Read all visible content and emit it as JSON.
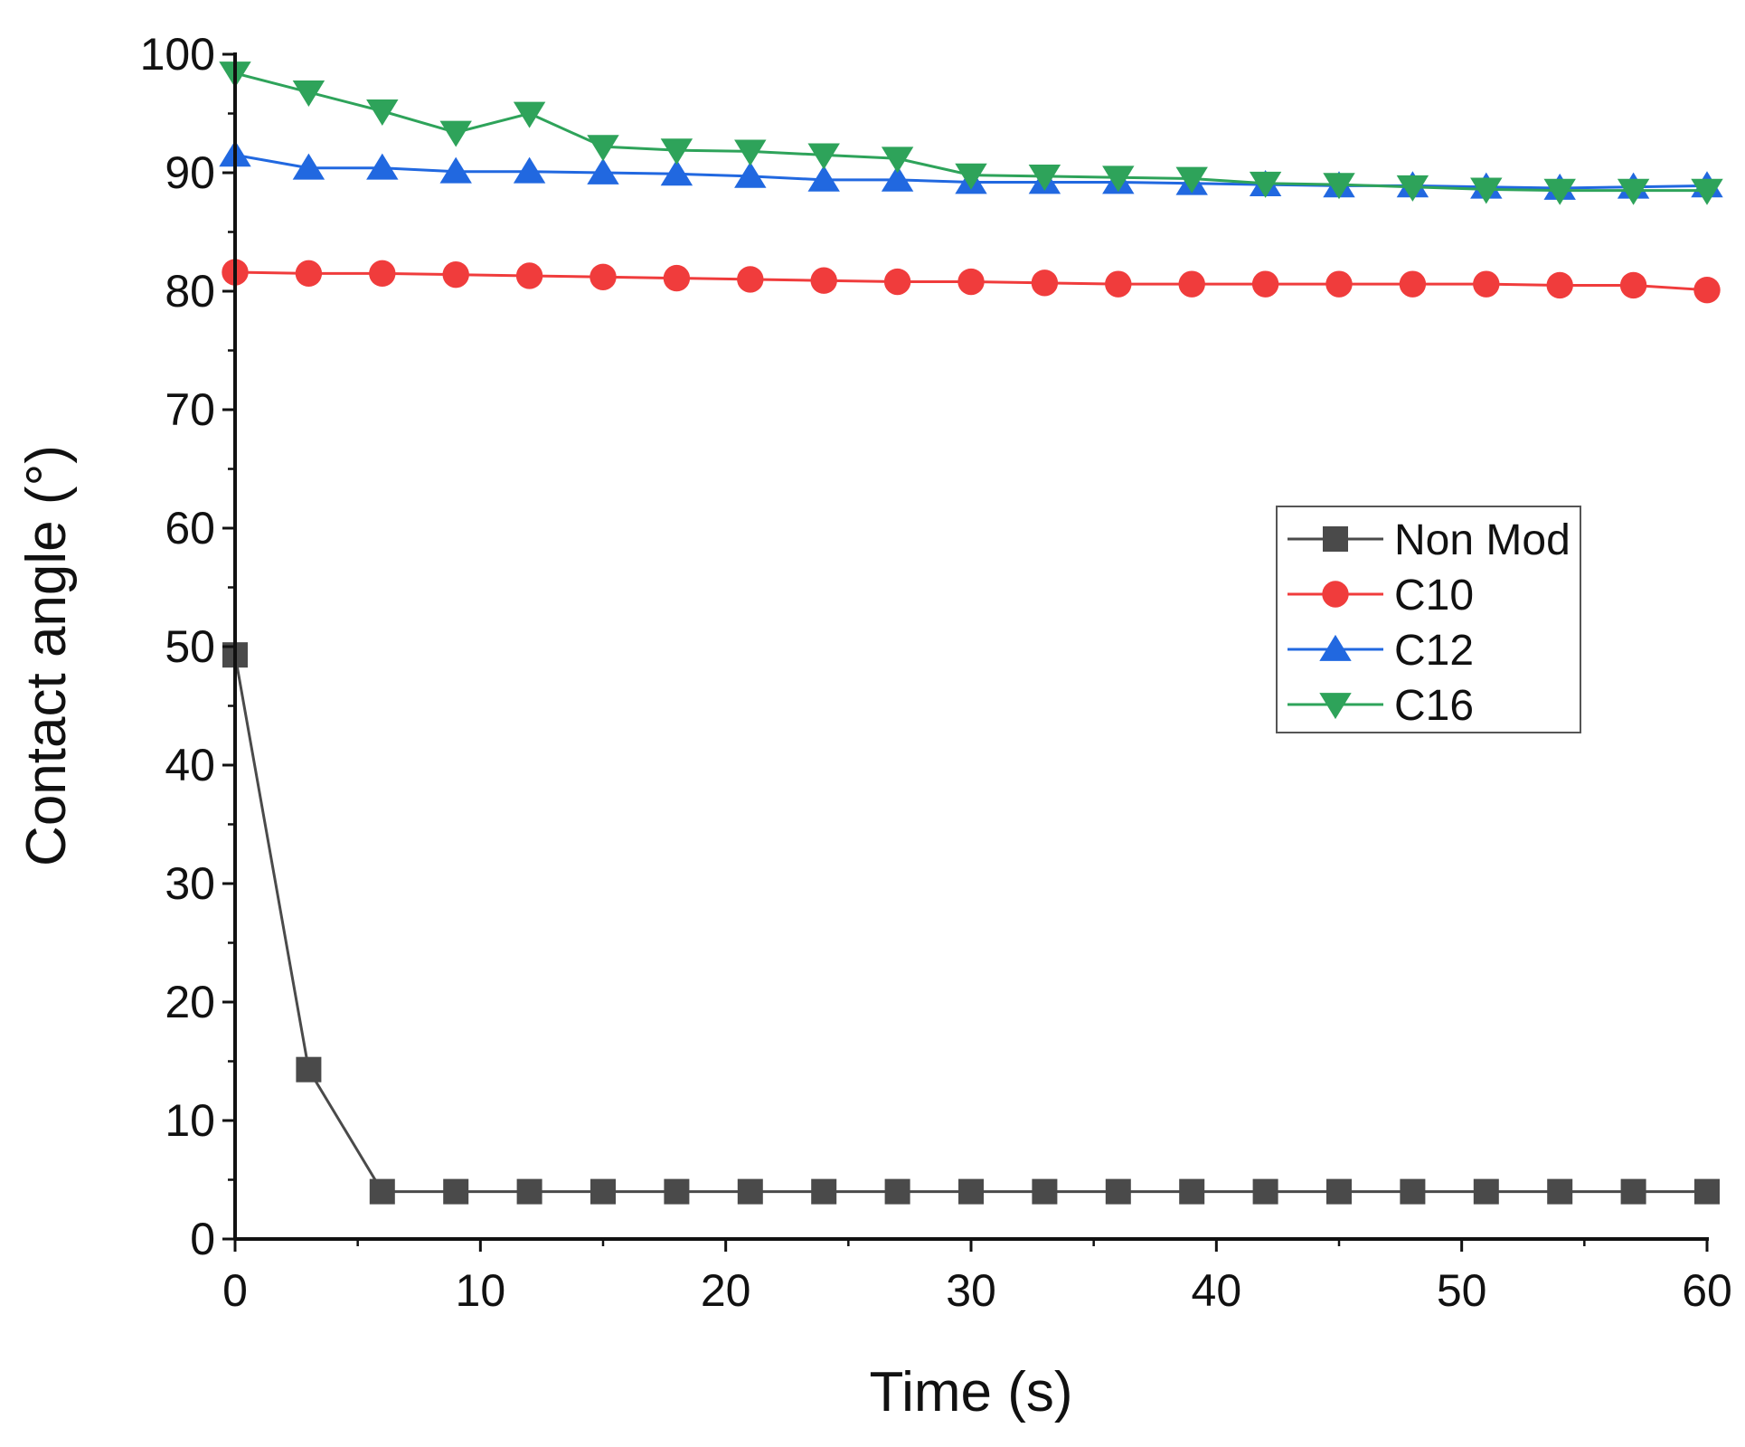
{
  "chart_data": {
    "type": "line",
    "title": "",
    "xlabel": "Time (s)",
    "ylabel": "Contact angle (°)",
    "xlim": [
      0,
      60
    ],
    "ylim": [
      0,
      100
    ],
    "x_ticks": [
      0,
      10,
      20,
      30,
      40,
      50,
      60
    ],
    "y_ticks": [
      0,
      10,
      20,
      30,
      40,
      50,
      60,
      70,
      80,
      90,
      100
    ],
    "legend_position": "right-center",
    "grid": false,
    "x": [
      0,
      3,
      6,
      9,
      12,
      15,
      18,
      21,
      24,
      27,
      30,
      33,
      36,
      39,
      42,
      45,
      48,
      51,
      54,
      57,
      60
    ],
    "series": [
      {
        "name": "Non Mod",
        "color": "#4a4a4a",
        "marker": "square",
        "values": [
          49.3,
          14.3,
          4.0,
          4.0,
          4.0,
          4.0,
          4.0,
          4.0,
          4.0,
          4.0,
          4.0,
          4.0,
          4.0,
          4.0,
          4.0,
          4.0,
          4.0,
          4.0,
          4.0,
          4.0,
          4.0
        ]
      },
      {
        "name": "C10",
        "color": "#f03c3c",
        "marker": "circle",
        "values": [
          81.6,
          81.5,
          81.5,
          81.4,
          81.3,
          81.2,
          81.1,
          81.0,
          80.9,
          80.8,
          80.8,
          80.7,
          80.6,
          80.6,
          80.6,
          80.6,
          80.6,
          80.6,
          80.5,
          80.5,
          80.1
        ]
      },
      {
        "name": "C12",
        "color": "#2168e0",
        "marker": "triangle-up",
        "values": [
          91.5,
          90.4,
          90.4,
          90.1,
          90.1,
          90.0,
          89.9,
          89.7,
          89.4,
          89.4,
          89.2,
          89.2,
          89.2,
          89.1,
          89.0,
          88.9,
          88.9,
          88.8,
          88.7,
          88.8,
          88.9
        ]
      },
      {
        "name": "C16",
        "color": "#2ea35a",
        "marker": "triangle-down",
        "values": [
          98.4,
          96.8,
          95.2,
          93.4,
          95.0,
          92.2,
          91.9,
          91.8,
          91.5,
          91.2,
          89.8,
          89.7,
          89.6,
          89.5,
          89.1,
          89.0,
          88.8,
          88.6,
          88.5,
          88.5,
          88.5
        ]
      }
    ]
  }
}
